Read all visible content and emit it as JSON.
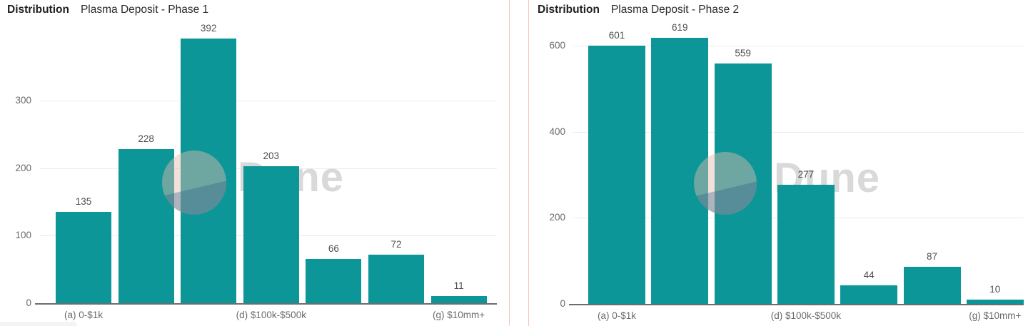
{
  "watermark": {
    "text": "Dune"
  },
  "colors": {
    "bar": "#0d9697",
    "card_border": "#f5c7b3",
    "grid_line": "#ececec",
    "axis_line": "#6d6d6d",
    "title": "#1f1f1f",
    "subtitle": "#2b2b2b",
    "value_label": "#4f4f4f",
    "tick_label": "#6b6b6b",
    "watermark_text": "#d9d9d9",
    "watermark_circle_top": "rgba(228,186,174,0.45)",
    "watermark_circle_bottom": "rgba(45,95,135,0.35)"
  },
  "chart_data": [
    {
      "type": "bar",
      "title": "Distribution",
      "subtitle": "Plasma Deposit - Phase 1",
      "values": [
        135,
        228,
        392,
        203,
        66,
        72,
        11
      ],
      "y_ticks": [
        0,
        100,
        200,
        300
      ],
      "ylim": [
        0,
        395
      ],
      "x_tick_labels": [
        {
          "label": "(a) 0-$1k",
          "bar_index": 0
        },
        {
          "label": "(d) $100k-$500k",
          "bar_index": 3
        },
        {
          "label": "(g) $10mm+",
          "bar_index": 6
        }
      ],
      "grid": true,
      "legend": false
    },
    {
      "type": "bar",
      "title": "Distribution",
      "subtitle": "Plasma Deposit - Phase 2",
      "values": [
        601,
        619,
        559,
        277,
        44,
        87,
        10
      ],
      "y_ticks": [
        0,
        200,
        400,
        600
      ],
      "ylim": [
        0,
        625
      ],
      "x_tick_labels": [
        {
          "label": "(a) 0-$1k",
          "bar_index": 0
        },
        {
          "label": "(d) $100k-$500k",
          "bar_index": 3
        },
        {
          "label": "(g) $10mm+",
          "bar_index": 6
        }
      ],
      "grid": true,
      "legend": false
    }
  ]
}
